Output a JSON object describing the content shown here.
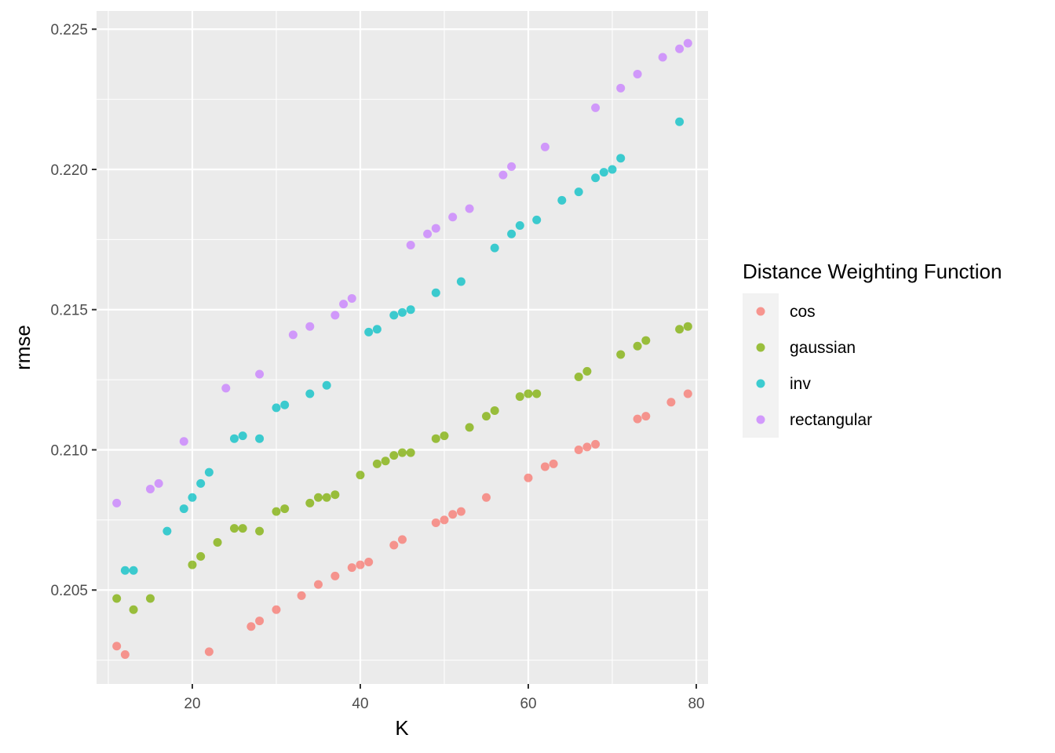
{
  "chart_data": {
    "type": "scatter",
    "xlabel": "K",
    "ylabel": "rmse",
    "xlim": [
      8.6,
      81.4
    ],
    "ylim": [
      0.20165,
      0.22565
    ],
    "x_ticks": [
      20,
      40,
      60,
      80
    ],
    "y_ticks": [
      0.205,
      0.21,
      0.215,
      0.22,
      0.225
    ],
    "x_tick_labels": [
      "20",
      "40",
      "60",
      "80"
    ],
    "y_tick_labels": [
      "0.205",
      "0.210",
      "0.215",
      "0.220",
      "0.225"
    ],
    "grid": true,
    "legend_position": "right",
    "legend_title": "Distance Weighting Function",
    "series": [
      {
        "name": "cos",
        "color": "#F8766D",
        "points": [
          [
            11,
            0.203
          ],
          [
            12,
            0.2027
          ],
          [
            22,
            0.2028
          ],
          [
            27,
            0.2037
          ],
          [
            28,
            0.2039
          ],
          [
            30,
            0.2043
          ],
          [
            33,
            0.2048
          ],
          [
            35,
            0.2052
          ],
          [
            37,
            0.2055
          ],
          [
            39,
            0.2058
          ],
          [
            40,
            0.2059
          ],
          [
            41,
            0.206
          ],
          [
            44,
            0.2066
          ],
          [
            45,
            0.2068
          ],
          [
            49,
            0.2074
          ],
          [
            50,
            0.2075
          ],
          [
            51,
            0.2077
          ],
          [
            52,
            0.2078
          ],
          [
            55,
            0.2083
          ],
          [
            60,
            0.209
          ],
          [
            62,
            0.2094
          ],
          [
            63,
            0.2095
          ],
          [
            66,
            0.21
          ],
          [
            67,
            0.2101
          ],
          [
            68,
            0.2102
          ],
          [
            73,
            0.2111
          ],
          [
            74,
            0.2112
          ],
          [
            77,
            0.2117
          ],
          [
            79,
            0.212
          ]
        ]
      },
      {
        "name": "gaussian",
        "color": "#7CAE00",
        "points": [
          [
            11,
            0.2047
          ],
          [
            13,
            0.2043
          ],
          [
            15,
            0.2047
          ],
          [
            20,
            0.2059
          ],
          [
            21,
            0.2062
          ],
          [
            23,
            0.2067
          ],
          [
            25,
            0.2072
          ],
          [
            26,
            0.2072
          ],
          [
            28,
            0.2071
          ],
          [
            30,
            0.2078
          ],
          [
            31,
            0.2079
          ],
          [
            34,
            0.2081
          ],
          [
            35,
            0.2083
          ],
          [
            36,
            0.2083
          ],
          [
            37,
            0.2084
          ],
          [
            40,
            0.2091
          ],
          [
            42,
            0.2095
          ],
          [
            43,
            0.2096
          ],
          [
            44,
            0.2098
          ],
          [
            45,
            0.2099
          ],
          [
            46,
            0.2099
          ],
          [
            49,
            0.2104
          ],
          [
            50,
            0.2105
          ],
          [
            53,
            0.2108
          ],
          [
            55,
            0.2112
          ],
          [
            56,
            0.2114
          ],
          [
            59,
            0.2119
          ],
          [
            60,
            0.212
          ],
          [
            61,
            0.212
          ],
          [
            66,
            0.2126
          ],
          [
            67,
            0.2128
          ],
          [
            71,
            0.2134
          ],
          [
            73,
            0.2137
          ],
          [
            74,
            0.2139
          ],
          [
            78,
            0.2143
          ],
          [
            79,
            0.2144
          ]
        ]
      },
      {
        "name": "inv",
        "color": "#00BFC4",
        "points": [
          [
            12,
            0.2057
          ],
          [
            13,
            0.2057
          ],
          [
            17,
            0.2071
          ],
          [
            19,
            0.2079
          ],
          [
            20,
            0.2083
          ],
          [
            21,
            0.2088
          ],
          [
            22,
            0.2092
          ],
          [
            25,
            0.2104
          ],
          [
            26,
            0.2105
          ],
          [
            28,
            0.2104
          ],
          [
            30,
            0.2115
          ],
          [
            31,
            0.2116
          ],
          [
            34,
            0.212
          ],
          [
            36,
            0.2123
          ],
          [
            41,
            0.2142
          ],
          [
            42,
            0.2143
          ],
          [
            44,
            0.2148
          ],
          [
            45,
            0.2149
          ],
          [
            46,
            0.215
          ],
          [
            49,
            0.2156
          ],
          [
            52,
            0.216
          ],
          [
            56,
            0.2172
          ],
          [
            58,
            0.2177
          ],
          [
            59,
            0.218
          ],
          [
            61,
            0.2182
          ],
          [
            64,
            0.2189
          ],
          [
            66,
            0.2192
          ],
          [
            68,
            0.2197
          ],
          [
            69,
            0.2199
          ],
          [
            70,
            0.22
          ],
          [
            71,
            0.2204
          ],
          [
            78,
            0.2217
          ]
        ]
      },
      {
        "name": "rectangular",
        "color": "#C77CFF",
        "points": [
          [
            11,
            0.2081
          ],
          [
            15,
            0.2086
          ],
          [
            16,
            0.2088
          ],
          [
            19,
            0.2103
          ],
          [
            24,
            0.2122
          ],
          [
            28,
            0.2127
          ],
          [
            32,
            0.2141
          ],
          [
            34,
            0.2144
          ],
          [
            37,
            0.2148
          ],
          [
            38,
            0.2152
          ],
          [
            39,
            0.2154
          ],
          [
            46,
            0.2173
          ],
          [
            48,
            0.2177
          ],
          [
            49,
            0.2179
          ],
          [
            51,
            0.2183
          ],
          [
            53,
            0.2186
          ],
          [
            57,
            0.2198
          ],
          [
            58,
            0.2201
          ],
          [
            62,
            0.2208
          ],
          [
            68,
            0.2222
          ],
          [
            71,
            0.2229
          ],
          [
            73,
            0.2234
          ],
          [
            76,
            0.224
          ],
          [
            78,
            0.2243
          ],
          [
            79,
            0.2245
          ]
        ]
      }
    ]
  }
}
